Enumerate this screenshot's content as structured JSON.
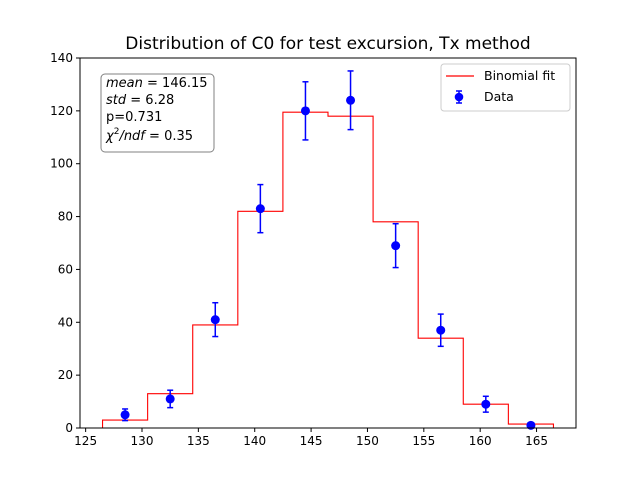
{
  "chart_data": {
    "type": "histogram-errorbar",
    "title": "Distribution of C0 for test excursion, Tx method",
    "xlim": [
      124.5,
      168.5
    ],
    "ylim": [
      0,
      140
    ],
    "xticks": [
      125,
      130,
      135,
      140,
      145,
      150,
      155,
      160,
      165
    ],
    "yticks": [
      0,
      20,
      40,
      60,
      80,
      100,
      120,
      140
    ],
    "grid": false,
    "legend_position": "top-right",
    "series": [
      {
        "name": "Binomial fit",
        "kind": "step",
        "color": "#ff0000",
        "bin_edges": [
          126.5,
          130.5,
          134.5,
          138.5,
          142.5,
          146.5,
          150.5,
          154.5,
          158.5,
          162.5,
          166.5
        ],
        "values": [
          3,
          13,
          39,
          82,
          119.5,
          118,
          78,
          34,
          9,
          1.5
        ]
      },
      {
        "name": "Data",
        "kind": "errorbar",
        "color": "#0000ff",
        "x": [
          128.5,
          132.5,
          136.5,
          140.5,
          144.5,
          148.5,
          152.5,
          156.5,
          160.5,
          164.5
        ],
        "y": [
          5,
          11,
          41,
          83,
          120,
          124,
          69,
          37,
          9,
          1
        ],
        "yerr": [
          2.2,
          3.3,
          6.4,
          9.1,
          11,
          11.1,
          8.3,
          6.1,
          3,
          1
        ]
      }
    ],
    "stats": {
      "mean": "146.15",
      "std": "6.28",
      "p_line": "p=0.731",
      "chi2ndf": "0.35"
    }
  }
}
